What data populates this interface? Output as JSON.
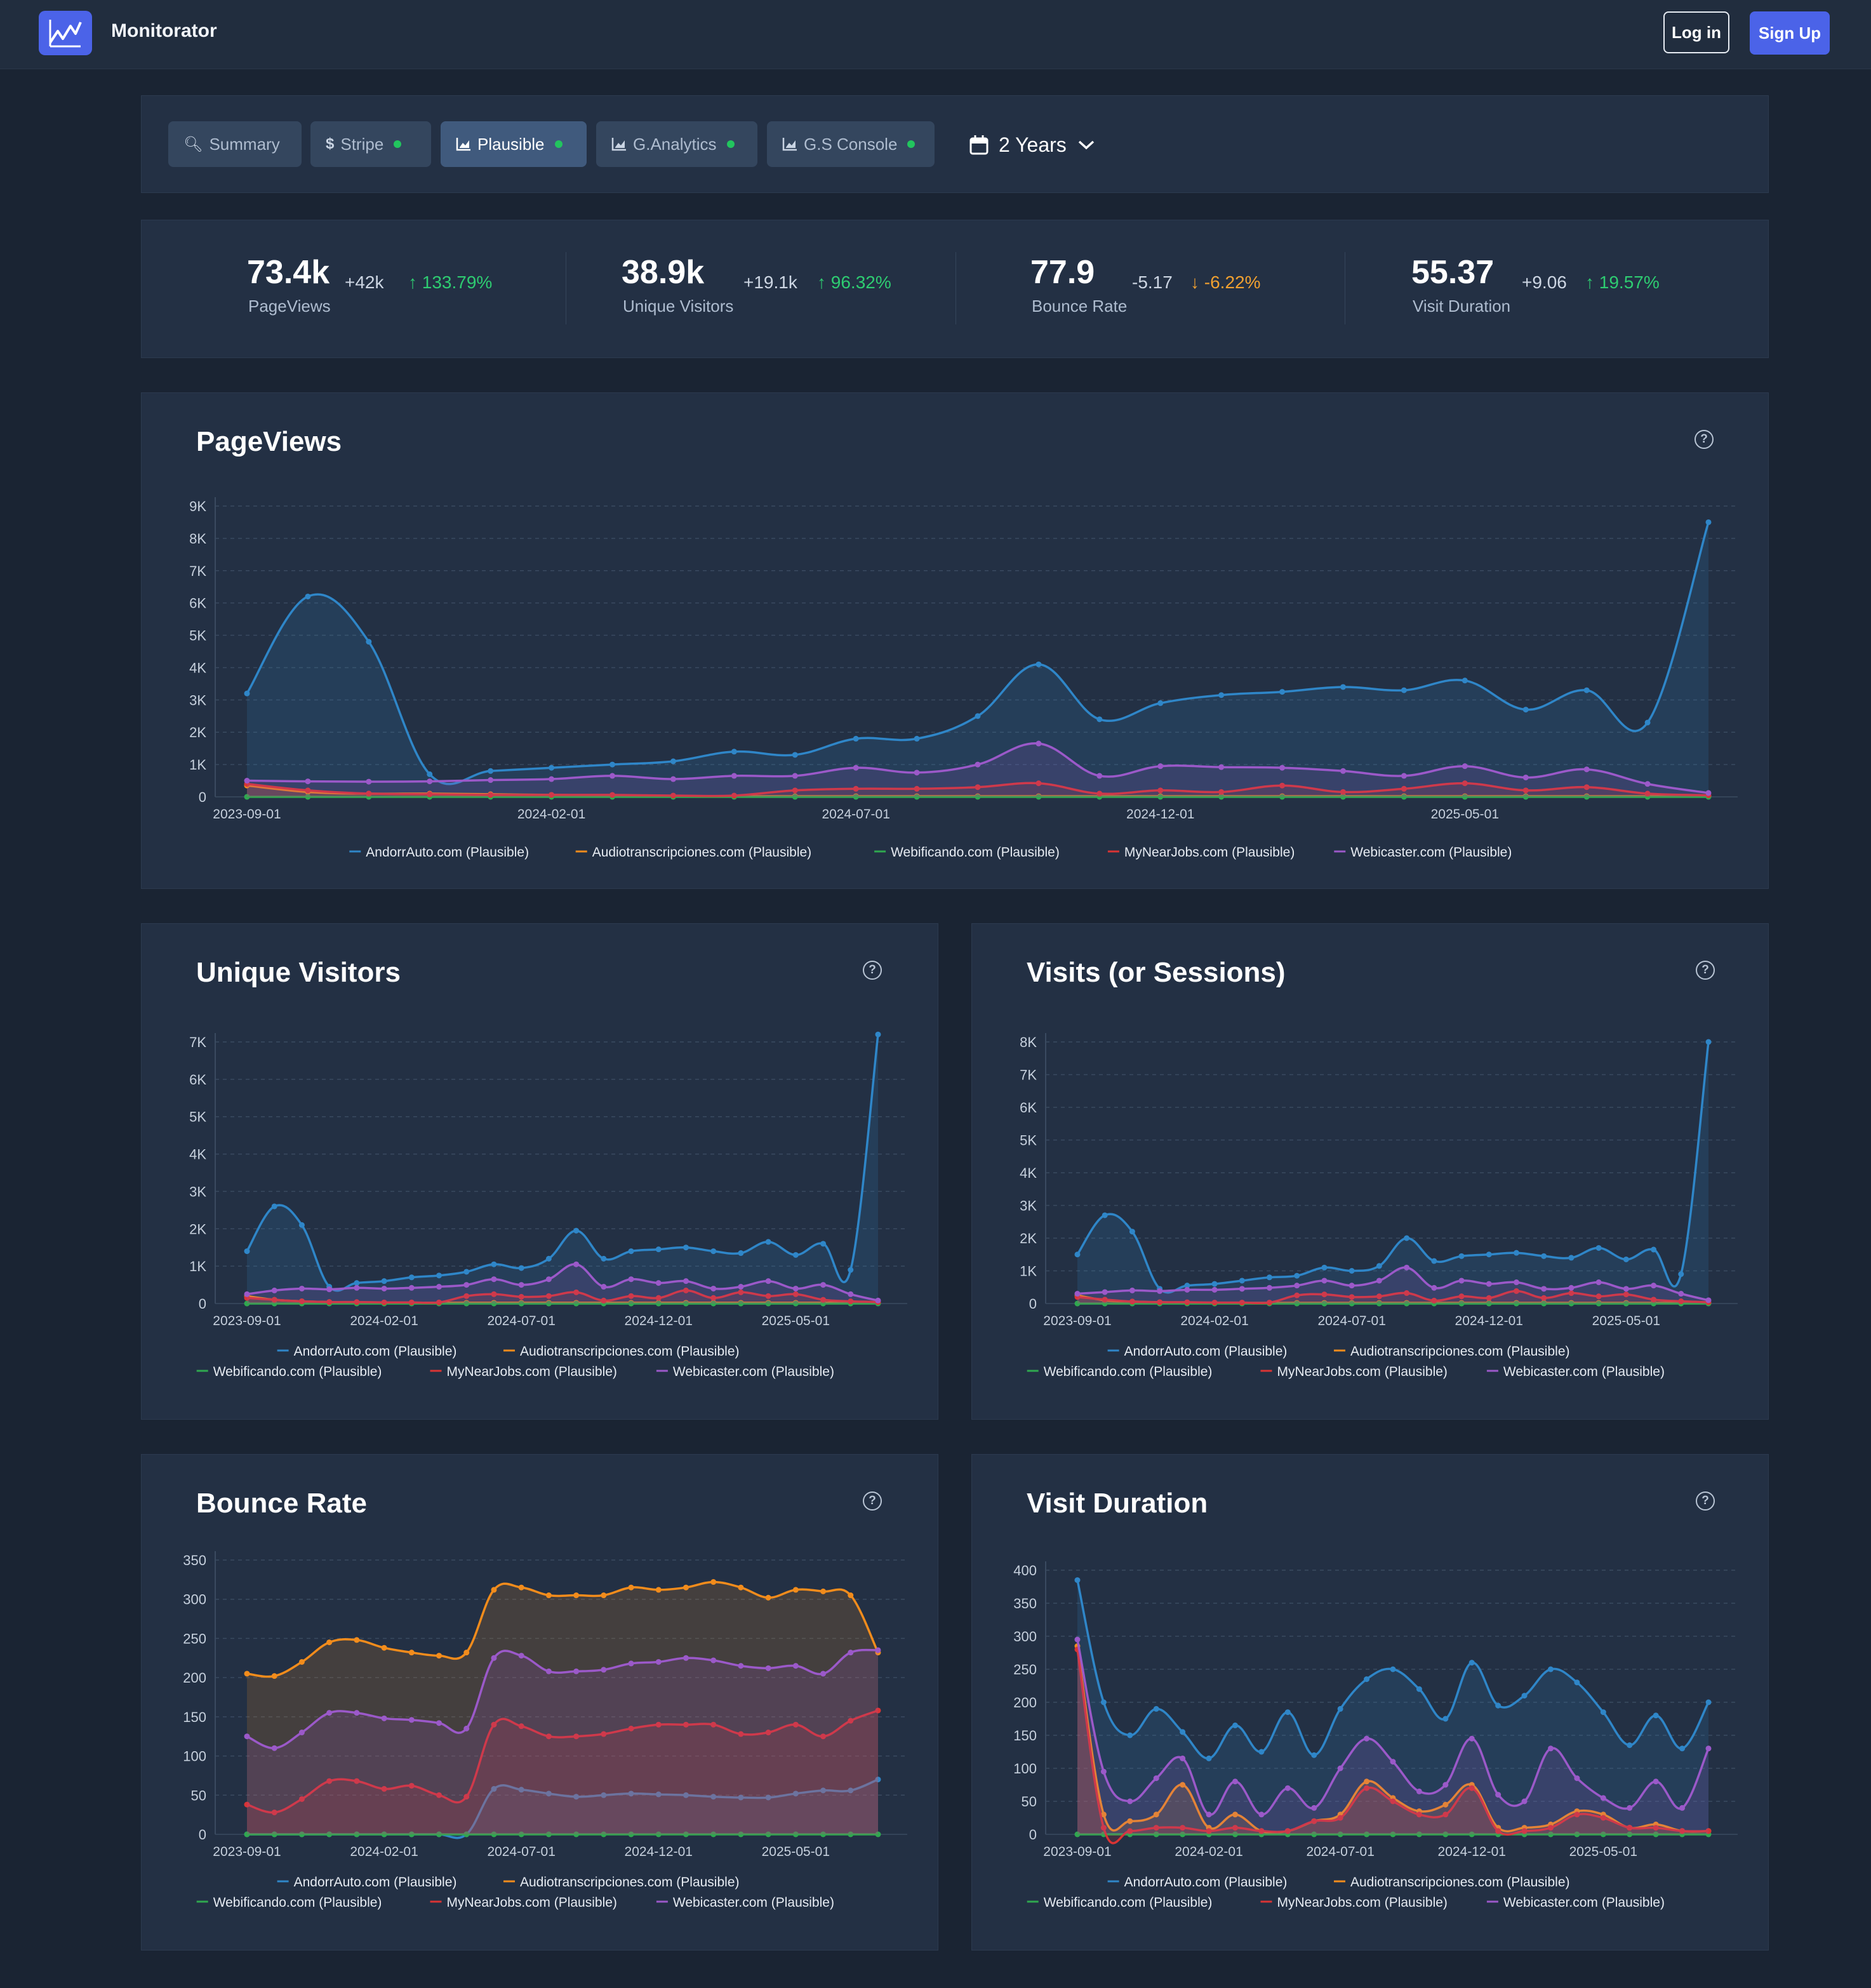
{
  "app": {
    "title": "Monitorator",
    "login_label": "Log in",
    "signup_label": "Sign Up"
  },
  "tabs": [
    {
      "label": "Summary",
      "icon": "search-icon",
      "dot": false,
      "active": false
    },
    {
      "label": "Stripe",
      "icon": "dollar-icon",
      "dot": true,
      "active": false
    },
    {
      "label": "Plausible",
      "icon": "chart-icon",
      "dot": true,
      "active": true
    },
    {
      "label": "G.Analytics",
      "icon": "chart-icon",
      "dot": true,
      "active": false
    },
    {
      "label": "G.S Console",
      "icon": "chart-icon",
      "dot": true,
      "active": false
    }
  ],
  "range": {
    "label": "2 Years"
  },
  "stats": [
    {
      "value": "73.4k",
      "delta": "+42k",
      "pct": "133.79%",
      "dir": "up",
      "label": "PageViews"
    },
    {
      "value": "38.9k",
      "delta": "+19.1k",
      "pct": "96.32%",
      "dir": "up",
      "label": "Unique Visitors"
    },
    {
      "value": "77.9",
      "delta": "-5.17",
      "pct": "-6.22%",
      "dir": "down",
      "label": "Bounce Rate"
    },
    {
      "value": "55.37",
      "delta": "+9.06",
      "pct": "19.57%",
      "dir": "up",
      "label": "Visit Duration"
    }
  ],
  "colors": {
    "AndorrAuto": "#2f86c8",
    "Audiotranscripciones": "#f28c1c",
    "Webificando": "#2fa84f",
    "MyNearJobs": "#d93434",
    "Webicaster": "#9b59c9"
  },
  "chart_data": [
    {
      "id": "pageviews",
      "type": "area",
      "title": "PageViews",
      "x_ticks": [
        "2023-09-01",
        "2024-02-01",
        "2024-07-01",
        "2024-12-01",
        "2025-05-01"
      ],
      "ylim": [
        0,
        9000
      ],
      "y_ticks": [
        0,
        1000,
        2000,
        3000,
        4000,
        5000,
        6000,
        7000,
        8000,
        9000
      ],
      "y_labels": [
        "0",
        "1K",
        "2K",
        "3K",
        "4K",
        "5K",
        "6K",
        "7K",
        "8K",
        "9K"
      ],
      "series": [
        {
          "name": "AndorrAuto.com (Plausible)",
          "key": "AndorrAuto",
          "values": [
            3200,
            6200,
            4800,
            700,
            800,
            900,
            1000,
            1100,
            1400,
            1300,
            1800,
            1800,
            2500,
            4100,
            2400,
            2900,
            3150,
            3250,
            3400,
            3300,
            3600,
            2700,
            3300,
            2300,
            8500
          ]
        },
        {
          "name": "Audiotranscripciones.com (Plausible)",
          "key": "Audiotranscripciones",
          "values": [
            350,
            150,
            100,
            100,
            80,
            60,
            40,
            30,
            20,
            20,
            20,
            20,
            20,
            20,
            20,
            20,
            20,
            20,
            20,
            20,
            20,
            20,
            20,
            20,
            20
          ]
        },
        {
          "name": "Webificando.com (Plausible)",
          "key": "Webificando",
          "values": [
            0,
            0,
            0,
            0,
            0,
            0,
            0,
            0,
            0,
            0,
            0,
            0,
            0,
            0,
            0,
            0,
            0,
            0,
            0,
            0,
            0,
            0,
            0,
            0,
            0
          ]
        },
        {
          "name": "MyNearJobs.com (Plausible)",
          "key": "MyNearJobs",
          "values": [
            400,
            200,
            100,
            80,
            60,
            60,
            60,
            40,
            40,
            200,
            250,
            250,
            300,
            420,
            100,
            200,
            150,
            350,
            150,
            250,
            420,
            200,
            300,
            100,
            50
          ]
        },
        {
          "name": "Webicaster.com (Plausible)",
          "key": "Webicaster",
          "values": [
            500,
            480,
            470,
            480,
            520,
            550,
            650,
            550,
            650,
            650,
            900,
            750,
            1000,
            1650,
            650,
            950,
            920,
            900,
            800,
            650,
            950,
            600,
            850,
            400,
            120
          ]
        }
      ]
    },
    {
      "id": "uniq",
      "type": "area",
      "title": "Unique Visitors",
      "x_ticks": [
        "2023-09-01",
        "2024-02-01",
        "2024-07-01",
        "2024-12-01",
        "2025-05-01"
      ],
      "ylim": [
        0,
        7000
      ],
      "y_ticks": [
        0,
        1000,
        2000,
        3000,
        4000,
        5000,
        6000,
        7000
      ],
      "y_labels": [
        "0",
        "1K",
        "2K",
        "3K",
        "4K",
        "5K",
        "6K",
        "7K"
      ],
      "series": [
        {
          "name": "AndorrAuto.com (Plausible)",
          "key": "AndorrAuto",
          "values": [
            1400,
            2600,
            2100,
            450,
            550,
            600,
            700,
            750,
            850,
            1050,
            950,
            1200,
            1950,
            1200,
            1400,
            1450,
            1500,
            1400,
            1350,
            1650,
            1300,
            1600,
            900,
            7200
          ]
        },
        {
          "name": "Audiotranscripciones.com (Plausible)",
          "key": "Audiotranscripciones",
          "values": [
            200,
            100,
            60,
            40,
            30,
            20,
            20,
            20,
            20,
            20,
            20,
            20,
            20,
            20,
            20,
            20,
            20,
            20,
            20,
            20,
            20,
            20,
            20,
            20
          ]
        },
        {
          "name": "Webificando.com (Plausible)",
          "key": "Webificando",
          "values": [
            0,
            0,
            0,
            0,
            0,
            0,
            0,
            0,
            0,
            0,
            0,
            0,
            0,
            0,
            0,
            0,
            0,
            0,
            0,
            0,
            0,
            0,
            0,
            0
          ]
        },
        {
          "name": "MyNearJobs.com (Plausible)",
          "key": "MyNearJobs",
          "values": [
            150,
            100,
            60,
            40,
            40,
            30,
            30,
            30,
            200,
            250,
            180,
            200,
            300,
            80,
            200,
            150,
            350,
            150,
            300,
            200,
            250,
            100,
            60,
            40
          ]
        },
        {
          "name": "Webicaster.com (Plausible)",
          "key": "Webicaster",
          "values": [
            250,
            350,
            400,
            380,
            420,
            400,
            420,
            450,
            500,
            650,
            500,
            650,
            1050,
            450,
            650,
            550,
            600,
            400,
            450,
            600,
            400,
            500,
            250,
            80
          ]
        }
      ]
    },
    {
      "id": "visits",
      "type": "area",
      "title": "Visits (or Sessions)",
      "x_ticks": [
        "2023-09-01",
        "2024-02-01",
        "2024-07-01",
        "2024-12-01",
        "2025-05-01"
      ],
      "ylim": [
        0,
        8000
      ],
      "y_ticks": [
        0,
        1000,
        2000,
        3000,
        4000,
        5000,
        6000,
        7000,
        8000
      ],
      "y_labels": [
        "0",
        "1K",
        "2K",
        "3K",
        "4K",
        "5K",
        "6K",
        "7K",
        "8K"
      ],
      "series": [
        {
          "name": "AndorrAuto.com (Plausible)",
          "key": "AndorrAuto",
          "values": [
            1500,
            2700,
            2200,
            450,
            550,
            600,
            700,
            800,
            850,
            1100,
            1000,
            1150,
            2000,
            1300,
            1450,
            1500,
            1550,
            1450,
            1400,
            1700,
            1350,
            1650,
            900,
            8000
          ]
        },
        {
          "name": "Audiotranscripciones.com (Plausible)",
          "key": "Audiotranscripciones",
          "values": [
            250,
            100,
            60,
            40,
            30,
            20,
            20,
            20,
            20,
            20,
            20,
            20,
            20,
            20,
            20,
            20,
            20,
            20,
            20,
            20,
            20,
            20,
            20,
            20
          ]
        },
        {
          "name": "Webificando.com (Plausible)",
          "key": "Webificando",
          "values": [
            0,
            0,
            0,
            0,
            0,
            0,
            0,
            0,
            0,
            0,
            0,
            0,
            0,
            0,
            0,
            0,
            0,
            0,
            0,
            0,
            0,
            0,
            0,
            0
          ]
        },
        {
          "name": "MyNearJobs.com (Plausible)",
          "key": "MyNearJobs",
          "values": [
            200,
            120,
            60,
            40,
            40,
            30,
            30,
            30,
            250,
            280,
            200,
            220,
            320,
            90,
            220,
            170,
            380,
            170,
            320,
            220,
            280,
            120,
            70,
            40
          ]
        },
        {
          "name": "Webicaster.com (Plausible)",
          "key": "Webicaster",
          "values": [
            300,
            350,
            400,
            380,
            420,
            420,
            450,
            480,
            550,
            700,
            550,
            700,
            1100,
            480,
            700,
            600,
            650,
            450,
            480,
            650,
            450,
            550,
            300,
            100
          ]
        }
      ]
    },
    {
      "id": "bounce",
      "type": "area",
      "title": "Bounce Rate",
      "x_ticks": [
        "2023-09-01",
        "2024-02-01",
        "2024-07-01",
        "2024-12-01",
        "2025-05-01"
      ],
      "ylim": [
        0,
        350
      ],
      "y_ticks": [
        0,
        50,
        100,
        150,
        200,
        250,
        300,
        350
      ],
      "y_labels": [
        "0",
        "50",
        "100",
        "150",
        "200",
        "250",
        "300",
        "350"
      ],
      "series": [
        {
          "name": "AndorrAuto.com (Plausible)",
          "key": "AndorrAuto",
          "values": [
            0,
            0,
            0,
            0,
            0,
            0,
            0,
            0,
            0,
            58,
            57,
            52,
            48,
            50,
            52,
            51,
            50,
            48,
            47,
            47,
            52,
            56,
            56,
            70
          ]
        },
        {
          "name": "Audiotranscripciones.com (Plausible)",
          "key": "Audiotranscripciones",
          "values": [
            205,
            202,
            220,
            245,
            248,
            238,
            232,
            228,
            232,
            312,
            315,
            305,
            305,
            305,
            315,
            312,
            315,
            322,
            315,
            302,
            312,
            310,
            305,
            232
          ]
        },
        {
          "name": "Webificando.com (Plausible)",
          "key": "Webificando",
          "values": [
            0,
            0,
            0,
            0,
            0,
            0,
            0,
            0,
            0,
            0,
            0,
            0,
            0,
            0,
            0,
            0,
            0,
            0,
            0,
            0,
            0,
            0,
            0,
            0
          ]
        },
        {
          "name": "MyNearJobs.com (Plausible)",
          "key": "MyNearJobs",
          "values": [
            38,
            28,
            45,
            68,
            68,
            58,
            62,
            50,
            48,
            140,
            138,
            125,
            125,
            128,
            135,
            140,
            140,
            140,
            128,
            130,
            140,
            125,
            145,
            158
          ]
        },
        {
          "name": "Webicaster.com (Plausible)",
          "key": "Webicaster",
          "values": [
            125,
            110,
            130,
            155,
            155,
            148,
            146,
            142,
            135,
            225,
            228,
            208,
            208,
            210,
            218,
            220,
            225,
            222,
            215,
            212,
            215,
            205,
            232,
            235
          ]
        }
      ]
    },
    {
      "id": "duration",
      "type": "area",
      "title": "Visit Duration",
      "x_ticks": [
        "2023-09-01",
        "2024-02-01",
        "2024-07-01",
        "2024-12-01",
        "2025-05-01"
      ],
      "ylim": [
        0,
        400
      ],
      "y_ticks": [
        0,
        50,
        100,
        150,
        200,
        250,
        300,
        350,
        400
      ],
      "y_labels": [
        "0",
        "50",
        "100",
        "150",
        "200",
        "250",
        "300",
        "350",
        "400"
      ],
      "series": [
        {
          "name": "AndorrAuto.com (Plausible)",
          "key": "AndorrAuto",
          "values": [
            385,
            200,
            150,
            190,
            155,
            115,
            165,
            125,
            185,
            120,
            190,
            235,
            250,
            220,
            175,
            260,
            195,
            210,
            250,
            230,
            185,
            135,
            180,
            130,
            200
          ]
        },
        {
          "name": "Audiotranscripciones.com (Plausible)",
          "key": "Audiotranscripciones",
          "values": [
            285,
            30,
            20,
            30,
            75,
            10,
            30,
            5,
            5,
            20,
            30,
            80,
            55,
            35,
            45,
            75,
            10,
            10,
            15,
            35,
            30,
            10,
            15,
            5,
            5
          ]
        },
        {
          "name": "Webificando.com (Plausible)",
          "key": "Webificando",
          "values": [
            0,
            0,
            0,
            0,
            0,
            0,
            0,
            0,
            0,
            0,
            0,
            0,
            0,
            0,
            0,
            0,
            0,
            0,
            0,
            0,
            0,
            0,
            0,
            0,
            0
          ]
        },
        {
          "name": "MyNearJobs.com (Plausible)",
          "key": "MyNearJobs",
          "values": [
            280,
            10,
            5,
            10,
            10,
            5,
            10,
            5,
            5,
            20,
            25,
            70,
            50,
            30,
            30,
            70,
            5,
            5,
            10,
            30,
            25,
            10,
            10,
            5,
            5
          ]
        },
        {
          "name": "Webicaster.com (Plausible)",
          "key": "Webicaster",
          "values": [
            295,
            95,
            50,
            85,
            115,
            30,
            80,
            30,
            70,
            40,
            100,
            145,
            110,
            65,
            75,
            145,
            60,
            50,
            130,
            85,
            55,
            40,
            80,
            40,
            130
          ]
        }
      ]
    }
  ]
}
